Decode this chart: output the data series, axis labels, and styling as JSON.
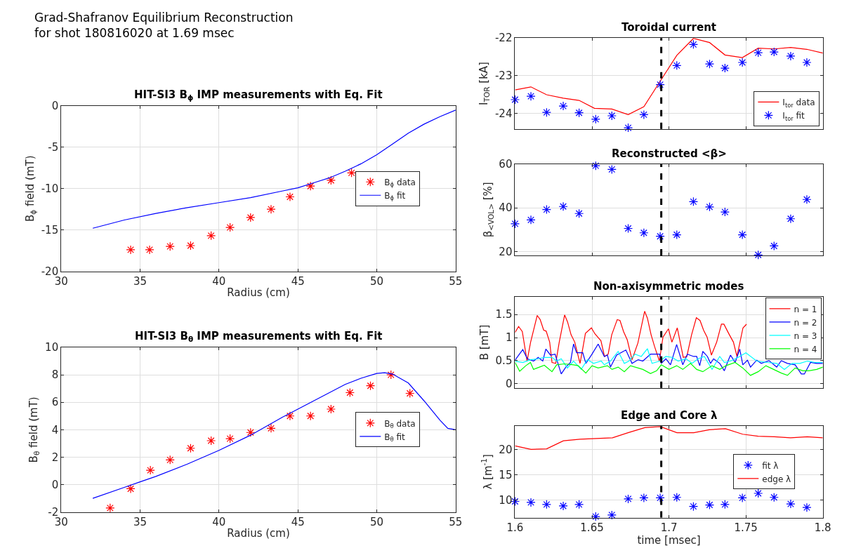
{
  "chart_data": [
    {
      "type": "other",
      "title": "Grad-Shafranov Equilibrium Reconstruction\nfor shot 180816020 at 1.69 msec"
    },
    {
      "type": "scatter",
      "title": "HIT-SI3 B$_{ϕ}$ IMP measurements with Eq. Fit",
      "xlabel": "Radius (cm)",
      "ylabel": "B$_{ϕ}$ field (mT)",
      "xlim": [
        30,
        55
      ],
      "xticks": [
        30,
        35,
        40,
        45,
        50,
        55
      ],
      "ylim": [
        -20,
        0
      ],
      "yticks": [
        -20,
        -15,
        -10,
        -5,
        0
      ],
      "grid": true,
      "legend": "right",
      "series": [
        {
          "name": "B$_{ϕ}$ data",
          "type": "scatter",
          "marker": "cross",
          "color": "#ff0000",
          "x": [
            34.4,
            35.6,
            36.9,
            38.2,
            39.5,
            40.7,
            42.0,
            43.3,
            44.5,
            45.8,
            47.1,
            48.4
          ],
          "values": [
            -17.4,
            -17.4,
            -17.0,
            -16.9,
            -15.7,
            -14.7,
            -13.5,
            -12.5,
            -11.0,
            -9.7,
            -9.0,
            -8.1
          ]
        },
        {
          "name": "B$_{ϕ}$ fit",
          "type": "line",
          "marker": "none",
          "color": "#0000ff",
          "x": [
            32,
            34,
            36,
            38,
            40,
            42,
            44,
            45,
            46,
            47,
            48,
            49,
            50,
            51,
            52,
            53,
            54,
            55
          ],
          "values": [
            -14.8,
            -13.8,
            -13.0,
            -12.3,
            -11.7,
            -11.1,
            -10.3,
            -9.9,
            -9.3,
            -8.7,
            -7.9,
            -7.0,
            -5.9,
            -4.6,
            -3.3,
            -2.2,
            -1.3,
            -0.5
          ]
        }
      ]
    },
    {
      "type": "scatter",
      "title": "HIT-SI3 B$_{θ}$ IMP measurements with Eq. Fit",
      "xlabel": "Radius (cm)",
      "ylabel": "B$_{θ}$ field (mT)",
      "xlim": [
        30,
        55
      ],
      "xticks": [
        30,
        35,
        40,
        45,
        50,
        55
      ],
      "ylim": [
        -2,
        10
      ],
      "yticks": [
        -2,
        0,
        2,
        4,
        6,
        8,
        10
      ],
      "grid": true,
      "legend": "right",
      "series": [
        {
          "name": "B$_{θ}$ data",
          "type": "scatter",
          "marker": "cross",
          "color": "#ff0000",
          "x": [
            33.1,
            34.4,
            35.65,
            36.9,
            38.2,
            39.5,
            40.7,
            42.0,
            43.3,
            44.5,
            45.8,
            47.1,
            48.3,
            49.6,
            50.9,
            52.1
          ],
          "values": [
            -1.7,
            -0.3,
            1.05,
            1.8,
            2.65,
            3.2,
            3.35,
            3.8,
            4.1,
            5.0,
            5.0,
            5.5,
            6.7,
            7.2,
            8.0,
            6.65
          ]
        },
        {
          "name": "B$_{θ}$ fit",
          "type": "line",
          "marker": "none",
          "color": "#0000ff",
          "x": [
            32,
            34,
            35,
            36,
            38,
            40,
            42,
            44,
            46,
            48,
            49,
            50,
            50.5,
            51,
            52,
            53,
            54,
            54.5,
            55
          ],
          "values": [
            -1.0,
            -0.2,
            0.2,
            0.6,
            1.5,
            2.5,
            3.6,
            4.9,
            6.1,
            7.3,
            7.75,
            8.1,
            8.15,
            8.05,
            7.4,
            6.1,
            4.7,
            4.1,
            4.0
          ]
        }
      ]
    },
    {
      "type": "line",
      "title": "Toroidal current",
      "ylabel": "I$_{TOR}$ [kA]",
      "xlim": [
        1.6,
        1.8
      ],
      "xticks": [
        1.6,
        1.65,
        1.7,
        1.75,
        1.8
      ],
      "ylim": [
        -24.42,
        -22
      ],
      "yticks": [
        -24,
        -23,
        -22
      ],
      "tick_labels": "y",
      "grid": true,
      "legend": "bottom right",
      "ref_lines": [
        {
          "axis": "x",
          "value": 1.695,
          "color": "#000000",
          "line_style": "dashed"
        }
      ],
      "series": [
        {
          "name": "I$_{tor}$ data",
          "type": "line",
          "marker": "none",
          "color": "#ff0000",
          "x": [
            1.6,
            1.6103,
            1.6205,
            1.6313,
            1.6416,
            1.6516,
            1.6629,
            1.6735,
            1.6837,
            1.6943,
            1.7051,
            1.7159,
            1.7264,
            1.7364,
            1.7477,
            1.758,
            1.7683,
            1.7791,
            1.7896,
            1.8
          ],
          "values": [
            -23.38,
            -23.3,
            -23.51,
            -23.6,
            -23.66,
            -23.87,
            -23.89,
            -24.04,
            -23.83,
            -23.15,
            -22.46,
            -22.01,
            -22.12,
            -22.45,
            -22.52,
            -22.27,
            -22.29,
            -22.25,
            -22.3,
            -22.4
          ]
        },
        {
          "name": "I$_{tor}$ fit",
          "type": "scatter",
          "marker": "cross",
          "color": "#0000ff",
          "x": [
            1.6,
            1.6103,
            1.6205,
            1.6313,
            1.6416,
            1.6524,
            1.6629,
            1.6735,
            1.6837,
            1.6943,
            1.7051,
            1.7159,
            1.7264,
            1.7364,
            1.7477,
            1.758,
            1.7683,
            1.7791,
            1.7896
          ],
          "values": [
            -23.64,
            -23.55,
            -23.98,
            -23.81,
            -23.99,
            -24.16,
            -24.07,
            -24.39,
            -24.04,
            -23.24,
            -22.73,
            -22.17,
            -22.69,
            -22.8,
            -22.65,
            -22.39,
            -22.37,
            -22.48,
            -22.65
          ]
        }
      ]
    },
    {
      "type": "scatter",
      "title": "Reconstructed <β>",
      "ylabel": "β$_{<VOL>}$ [%]",
      "xlim": [
        1.6,
        1.8
      ],
      "xticks": [
        1.6,
        1.65,
        1.7,
        1.75,
        1.8
      ],
      "ylim": [
        18.3,
        60
      ],
      "yticks": [
        20,
        40,
        60
      ],
      "tick_labels": "y",
      "grid": true,
      "ref_lines": [
        {
          "axis": "x",
          "value": 1.695,
          "color": "#000000",
          "line_style": "dashed"
        }
      ],
      "series": [
        {
          "type": "scatter",
          "marker": "cross",
          "color": "#0000ff",
          "x": [
            1.6,
            1.6103,
            1.6205,
            1.6313,
            1.6416,
            1.6524,
            1.6629,
            1.6735,
            1.6837,
            1.6943,
            1.7051,
            1.7159,
            1.7264,
            1.7364,
            1.7477,
            1.758,
            1.7683,
            1.7791,
            1.7896
          ],
          "values": [
            32.7,
            34.5,
            39.2,
            40.6,
            37.4,
            59.2,
            57.5,
            30.6,
            28.6,
            27.0,
            27.7,
            42.8,
            40.4,
            38.1,
            27.7,
            18.5,
            22.6,
            35.0,
            43.8
          ]
        }
      ]
    },
    {
      "type": "line",
      "title": "Non-axisymmetric modes",
      "ylabel": "B [mT]",
      "xlim": [
        1.6,
        1.8
      ],
      "xticks": [
        1.6,
        1.65,
        1.7,
        1.75,
        1.8
      ],
      "ylim": [
        -0.09,
        1.88
      ],
      "yticks": [
        0,
        0.5,
        1,
        1.5
      ],
      "tick_labels": "y",
      "grid": true,
      "legend": "top right",
      "ref_lines": [
        {
          "axis": "x",
          "value": 1.695,
          "color": "#000000",
          "line_style": "dashed"
        }
      ],
      "series": [
        {
          "name": "n = 1",
          "type": "line",
          "marker": "none",
          "color": "#ff0000",
          "x": [
            1.6,
            1.6023,
            1.6047,
            1.6078,
            1.6101,
            1.6144,
            1.6163,
            1.6186,
            1.6202,
            1.6225,
            1.624,
            1.6264,
            1.6287,
            1.6322,
            1.6341,
            1.6364,
            1.6388,
            1.6422,
            1.6442,
            1.6457,
            1.6496,
            1.6519,
            1.6558,
            1.6581,
            1.6605,
            1.6628,
            1.6664,
            1.6682,
            1.6705,
            1.6729,
            1.676,
            1.6798,
            1.6842,
            1.686,
            1.6884,
            1.6907,
            1.6938,
            1.6961,
            1.6997,
            1.7019,
            1.7054,
            1.7093,
            1.7116,
            1.7147,
            1.7178,
            1.7202,
            1.7225,
            1.7248,
            1.7276,
            1.731,
            1.7341,
            1.7357,
            1.7388,
            1.7419,
            1.7442,
            1.7481,
            1.7504
          ],
          "values": [
            1.11,
            1.24,
            1.13,
            0.49,
            0.9,
            1.48,
            1.39,
            1.16,
            1.14,
            0.9,
            0.46,
            0.44,
            0.9,
            1.49,
            1.34,
            1.06,
            0.9,
            0.44,
            0.8,
            1.09,
            1.21,
            1.08,
            0.93,
            0.59,
            0.64,
            1.06,
            1.39,
            1.37,
            1.13,
            0.95,
            0.52,
            0.88,
            1.57,
            1.42,
            1.06,
            0.8,
            0.49,
            1.01,
            1.19,
            0.9,
            1.21,
            0.57,
            0.59,
            1.06,
            1.43,
            1.37,
            1.16,
            1.01,
            0.62,
            0.9,
            1.29,
            1.29,
            1.09,
            0.9,
            0.59,
            1.21,
            1.29
          ]
        },
        {
          "name": "n = 2",
          "type": "line",
          "marker": "none",
          "color": "#0000ff",
          "x": [
            1.6,
            1.605,
            1.608,
            1.612,
            1.615,
            1.618,
            1.62,
            1.623,
            1.626,
            1.63,
            1.633,
            1.636,
            1.638,
            1.64,
            1.644,
            1.646,
            1.65,
            1.654,
            1.658,
            1.66,
            1.662,
            1.666,
            1.672,
            1.676,
            1.68,
            1.683,
            1.688,
            1.691,
            1.694,
            1.695,
            1.698,
            1.701,
            1.705,
            1.709,
            1.712,
            1.716,
            1.718,
            1.72,
            1.722,
            1.725,
            1.727,
            1.729,
            1.733,
            1.736,
            1.738,
            1.74,
            1.743,
            1.746,
            1.748,
            1.751,
            1.753,
            1.757,
            1.76,
            1.765,
            1.77,
            1.773,
            1.777,
            1.782,
            1.786,
            1.788,
            1.792,
            1.796,
            1.8
          ],
          "values": [
            0.51,
            0.74,
            0.54,
            0.49,
            0.57,
            0.49,
            0.75,
            0.62,
            0.64,
            0.21,
            0.36,
            0.46,
            0.86,
            0.67,
            0.67,
            0.44,
            0.64,
            0.86,
            0.59,
            0.62,
            0.36,
            0.62,
            0.73,
            0.44,
            0.52,
            0.49,
            0.64,
            0.64,
            0.64,
            0.44,
            0.54,
            0.41,
            0.85,
            0.41,
            0.64,
            0.59,
            0.59,
            0.39,
            0.7,
            0.59,
            0.44,
            0.54,
            0.44,
            0.28,
            0.46,
            0.62,
            0.46,
            0.75,
            0.41,
            0.51,
            0.36,
            0.51,
            0.44,
            0.5,
            0.36,
            0.5,
            0.44,
            0.41,
            0.21,
            0.21,
            0.46,
            0.44,
            0.44
          ]
        },
        {
          "name": "n = 3",
          "type": "line",
          "marker": "none",
          "color": "#00ffff",
          "x": [
            1.6,
            1.605,
            1.61,
            1.615,
            1.619,
            1.624,
            1.627,
            1.63,
            1.634,
            1.638,
            1.643,
            1.647,
            1.651,
            1.656,
            1.658,
            1.662,
            1.667,
            1.671,
            1.674,
            1.678,
            1.682,
            1.686,
            1.689,
            1.694,
            1.698,
            1.702,
            1.706,
            1.711,
            1.715,
            1.719,
            1.723,
            1.728,
            1.733,
            1.736,
            1.74,
            1.745,
            1.75,
            1.757,
            1.764,
            1.77,
            1.775,
            1.78,
            1.785,
            1.79,
            1.795,
            1.8
          ],
          "values": [
            0.49,
            0.46,
            0.52,
            0.54,
            0.57,
            0.57,
            0.49,
            0.54,
            0.34,
            0.49,
            0.31,
            0.52,
            0.44,
            0.49,
            0.41,
            0.49,
            0.7,
            0.44,
            0.49,
            0.64,
            0.59,
            0.76,
            0.44,
            0.49,
            0.59,
            0.57,
            0.49,
            0.54,
            0.44,
            0.54,
            0.59,
            0.31,
            0.59,
            0.46,
            0.49,
            0.57,
            0.67,
            0.49,
            0.46,
            0.44,
            0.31,
            0.44,
            0.44,
            0.49,
            0.46,
            0.46
          ]
        },
        {
          "name": "n = 4",
          "type": "line",
          "marker": "none",
          "color": "#00ff00",
          "x": [
            1.6,
            1.603,
            1.607,
            1.61,
            1.612,
            1.619,
            1.624,
            1.627,
            1.632,
            1.638,
            1.641,
            1.646,
            1.65,
            1.654,
            1.66,
            1.663,
            1.667,
            1.671,
            1.675,
            1.683,
            1.688,
            1.692,
            1.695,
            1.7,
            1.705,
            1.709,
            1.714,
            1.718,
            1.722,
            1.728,
            1.733,
            1.737,
            1.743,
            1.748,
            1.753,
            1.758,
            1.763,
            1.768,
            1.773,
            1.777,
            1.782,
            1.787,
            1.791,
            1.796,
            1.8
          ],
          "values": [
            0.46,
            0.27,
            0.39,
            0.46,
            0.31,
            0.4,
            0.26,
            0.41,
            0.43,
            0.41,
            0.39,
            0.23,
            0.39,
            0.34,
            0.39,
            0.31,
            0.36,
            0.26,
            0.39,
            0.31,
            0.22,
            0.28,
            0.41,
            0.31,
            0.39,
            0.31,
            0.44,
            0.31,
            0.26,
            0.39,
            0.31,
            0.39,
            0.46,
            0.34,
            0.18,
            0.26,
            0.39,
            0.31,
            0.23,
            0.18,
            0.34,
            0.28,
            0.28,
            0.31,
            0.36
          ]
        }
      ]
    },
    {
      "type": "scatter",
      "title": "Edge and Core λ",
      "xlabel": "time [msec]",
      "ylabel": "λ [m$^{-1}$]",
      "xlim": [
        1.6,
        1.8
      ],
      "xticks": [
        1.6,
        1.65,
        1.7,
        1.75,
        1.8
      ],
      "ylim": [
        6.5,
        24.6
      ],
      "yticks": [
        10,
        15,
        20
      ],
      "grid": true,
      "legend": "right",
      "ref_lines": [
        {
          "axis": "x",
          "value": 1.695,
          "color": "#000000",
          "line_style": "dashed"
        }
      ],
      "series": [
        {
          "name": "fit λ",
          "type": "scatter",
          "marker": "cross",
          "color": "#0000ff",
          "x": [
            1.6,
            1.6103,
            1.6205,
            1.6313,
            1.6416,
            1.6524,
            1.6629,
            1.6735,
            1.6837,
            1.6943,
            1.7051,
            1.7159,
            1.7264,
            1.7364,
            1.7477,
            1.758,
            1.7683,
            1.7791,
            1.7896
          ],
          "values": [
            9.7,
            9.5,
            9.1,
            8.8,
            9.1,
            6.7,
            7.0,
            10.2,
            10.4,
            10.4,
            10.5,
            8.7,
            9.0,
            9.1,
            10.4,
            11.3,
            10.5,
            9.2,
            8.5
          ]
        },
        {
          "name": "edge λ",
          "type": "line",
          "marker": "none",
          "color": "#ff0000",
          "x": [
            1.6,
            1.6104,
            1.6205,
            1.6314,
            1.6422,
            1.6633,
            1.6734,
            1.6843,
            1.6944,
            1.7052,
            1.7161,
            1.7262,
            1.7367,
            1.7479,
            1.758,
            1.7685,
            1.779,
            1.7899,
            1.8
          ],
          "values": [
            20.7,
            20.0,
            20.1,
            21.7,
            22.0,
            22.3,
            23.3,
            24.3,
            24.5,
            23.3,
            23.3,
            23.9,
            24.1,
            23.0,
            22.6,
            22.5,
            22.3,
            22.5,
            22.3
          ]
        }
      ]
    }
  ]
}
